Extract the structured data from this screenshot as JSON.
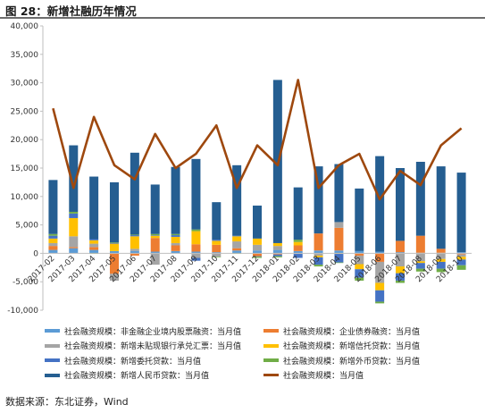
{
  "title": "图 28：新增社融历年情况",
  "source": "数据来源：东北证券，Wind",
  "chart_data": {
    "type": "bar",
    "stacked": true,
    "categories": [
      "2017-02",
      "2017-03",
      "2017-04",
      "2017-05",
      "2017-06",
      "2017-07",
      "2017-08",
      "2017-09",
      "2017-10",
      "2017-11",
      "2017-12",
      "2018-01",
      "2018-02",
      "2018-03",
      "2018-04",
      "2018-05",
      "2018-06",
      "2018-07",
      "2018-08",
      "2018-09",
      "2018-10"
    ],
    "x_tick_labels": [
      "2017-02",
      "2017-03",
      "2017-04",
      "2017-05",
      "2017-06",
      "2017-07",
      "2017-08",
      "2017-09",
      "2017-10",
      "2017-11",
      "2017-12",
      "2018-01",
      "2018-02",
      "2018-03",
      "2018-04",
      "2018-05",
      "2018-06",
      "2018-07",
      "2018-08",
      "2018-09",
      "2018-10"
    ],
    "y_tick_labels": [
      "-10,000",
      "-5,000",
      "0",
      "5,000",
      "10,000",
      "15,000",
      "20,000",
      "25,000",
      "30,000",
      "35,000",
      "40,000"
    ],
    "ylim": [
      -10000,
      40000
    ],
    "grid": false,
    "legend_position": "bottom",
    "series": [
      {
        "name": "社会融资规模：非金融企业境内股票融资：当月值",
        "color": "#5b9bd5",
        "values": [
          600,
          900,
          600,
          400,
          400,
          300,
          400,
          300,
          200,
          500,
          500,
          600,
          400,
          500,
          500,
          400,
          300,
          200,
          100,
          100,
          200
        ]
      },
      {
        "name": "社会融资规模：企业债券融资：当月值",
        "color": "#ed7d31",
        "values": [
          700,
          200,
          500,
          -3600,
          -400,
          2400,
          1000,
          1300,
          1300,
          400,
          -500,
          -200,
          1000,
          3000,
          4000,
          -400,
          -1500,
          2000,
          3000,
          700,
          -200
        ]
      },
      {
        "name": "社会融资规模：新增未贴现银行承兑汇票：当月值",
        "color": "#a5a5a5",
        "values": [
          500,
          1900,
          600,
          -1200,
          400,
          -2000,
          400,
          -800,
          -600,
          1200,
          1000,
          700,
          -100,
          -400,
          1000,
          -1500,
          -3700,
          -2300,
          -1400,
          -1000,
          -400
        ]
      },
      {
        "name": "社会融资规模：新增信托贷款：当月值",
        "color": "#ffc000",
        "values": [
          800,
          3200,
          600,
          1300,
          2200,
          400,
          1100,
          2300,
          700,
          900,
          1100,
          500,
          600,
          -300,
          -100,
          -900,
          -1300,
          -1200,
          -300,
          -500,
          -500
        ]
      },
      {
        "name": "社会融资规模：新增委托贷款：当月值",
        "color": "#4472c4",
        "values": [
          500,
          800,
          200,
          100,
          200,
          100,
          300,
          -500,
          200,
          100,
          -100,
          -300,
          -700,
          -1300,
          -1500,
          -1500,
          -2000,
          -1300,
          -1000,
          -1200,
          -1000
        ]
      },
      {
        "name": "社会融资规模：新增外币贷款：当月值",
        "color": "#70ad47",
        "values": [
          300,
          300,
          -100,
          100,
          100,
          200,
          200,
          300,
          -100,
          -100,
          -200,
          -200,
          400,
          -300,
          -100,
          -500,
          -300,
          -400,
          -500,
          -600,
          -800
        ]
      },
      {
        "name": "社会融资规模：新增人民币贷款：当月值",
        "color": "#255e91",
        "values": [
          9500,
          11700,
          11000,
          10600,
          14400,
          8700,
          11800,
          12400,
          6600,
          12400,
          5800,
          28700,
          9200,
          11800,
          10200,
          11000,
          16800,
          12800,
          13000,
          14500,
          14000
        ]
      },
      {
        "name": "社会融资规模：当月值",
        "color": "#9e480e",
        "type": "line",
        "values": [
          25500,
          11500,
          24000,
          15500,
          13000,
          21000,
          15000,
          17500,
          22500,
          11500,
          19000,
          15500,
          30500,
          11500,
          15500,
          17500,
          9500,
          14500,
          12000,
          19000,
          22000
        ]
      }
    ]
  }
}
